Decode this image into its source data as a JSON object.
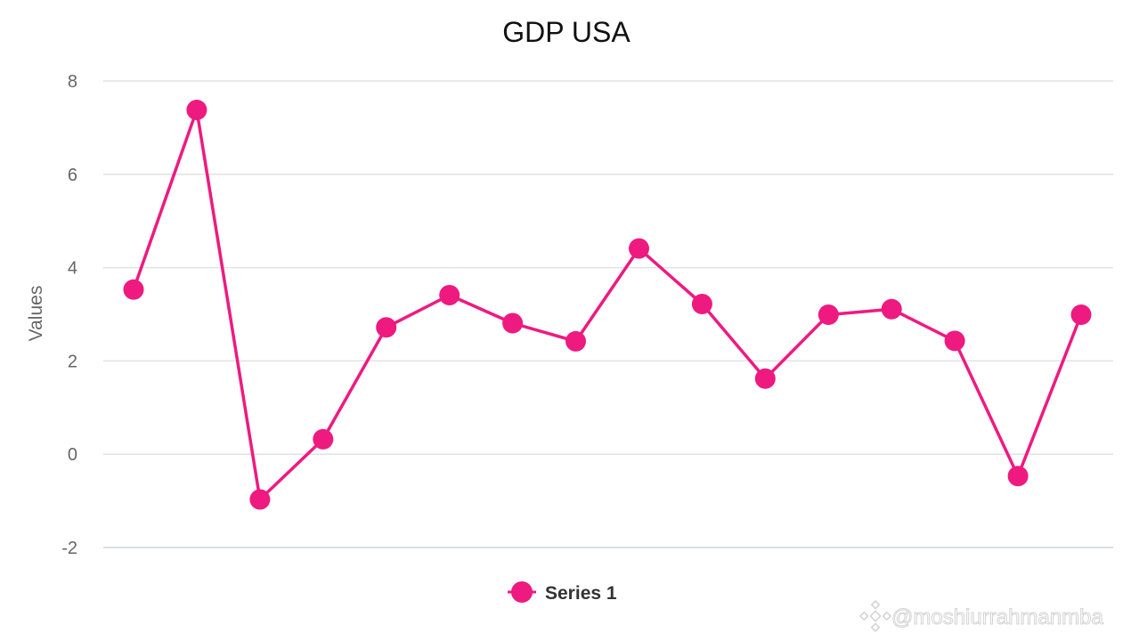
{
  "chart_data": {
    "type": "line",
    "title": "GDP USA",
    "xlabel": "",
    "ylabel": "Values",
    "ylim": [
      -2,
      8
    ],
    "yticks": [
      -2,
      0,
      2,
      4,
      6,
      8
    ],
    "grid": true,
    "legend_position": "bottom-center",
    "color": "#EE1A80",
    "series": [
      {
        "name": "Series 1",
        "values": [
          3.53,
          7.38,
          -0.97,
          0.32,
          2.72,
          3.41,
          2.81,
          2.42,
          4.41,
          3.22,
          1.62,
          2.99,
          3.11,
          2.43,
          -0.47,
          2.99
        ]
      }
    ]
  },
  "watermark": {
    "text": "@moshiurrahmanmba",
    "icon": "binance-logo-icon"
  }
}
